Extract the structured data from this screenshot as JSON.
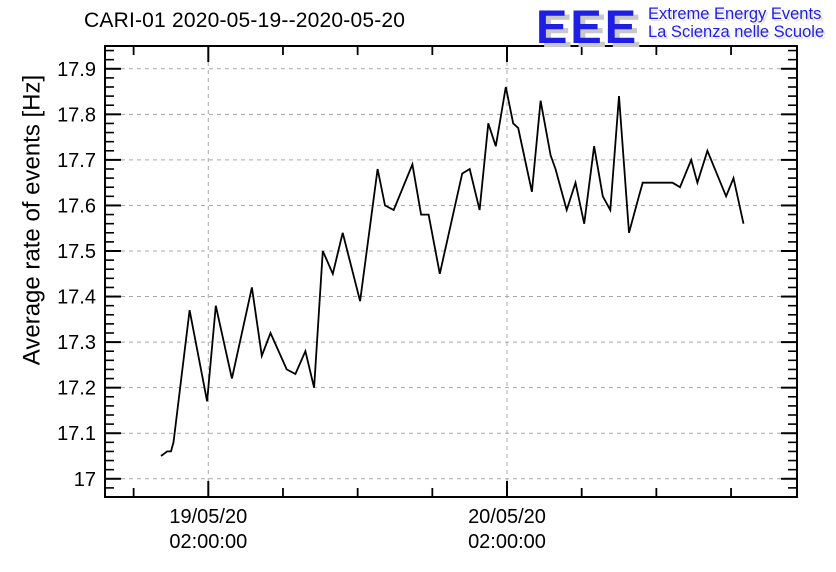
{
  "header": {
    "title": "CARI-01 2020-05-19--2020-05-20"
  },
  "logo": {
    "acronym": "EEE",
    "line1": "Extreme Energy Events",
    "line2": "La Scienza nelle Scuole",
    "color": "#1e1ee4",
    "shadow_color": "#c8c8c8"
  },
  "chart_data": {
    "type": "line",
    "title": "CARI-01 2020-05-19--2020-05-20",
    "xlabel": "",
    "ylabel": "Average rate of events [Hz]",
    "x_unit": "hours since 2020-05-19 00:00:00",
    "xlim": [
      -6.3,
      49.3
    ],
    "ylim": [
      16.96,
      17.95
    ],
    "grid": true,
    "legend": "none",
    "line_color": "#000000",
    "grid_color": "#a9a9a9",
    "y_major_ticks": [
      17.0,
      17.1,
      17.2,
      17.3,
      17.4,
      17.5,
      17.6,
      17.7,
      17.8,
      17.9
    ],
    "y_tick_labels": [
      "17",
      "17.1",
      "17.2",
      "17.3",
      "17.4",
      "17.5",
      "17.6",
      "17.7",
      "17.8",
      "17.9"
    ],
    "y_minor_step": 0.02,
    "x_major_ticks": [
      {
        "t": 2,
        "label_line1": "19/05/20",
        "label_line2": "02:00:00"
      },
      {
        "t": 26,
        "label_line1": "20/05/20",
        "label_line2": "02:00:00"
      }
    ],
    "x_medium_ticks": [
      -4,
      8,
      14,
      20,
      32,
      38,
      44
    ],
    "points": [
      [
        -1.8,
        17.05
      ],
      [
        -1.3,
        17.06
      ],
      [
        -1.0,
        17.06
      ],
      [
        -0.8,
        17.08
      ],
      [
        0.5,
        17.37
      ],
      [
        1.9,
        17.17
      ],
      [
        2.6,
        17.38
      ],
      [
        3.9,
        17.22
      ],
      [
        5.5,
        17.42
      ],
      [
        6.3,
        17.27
      ],
      [
        7.0,
        17.32
      ],
      [
        8.3,
        17.24
      ],
      [
        9.0,
        17.23
      ],
      [
        9.8,
        17.28
      ],
      [
        10.5,
        17.2
      ],
      [
        11.2,
        17.5
      ],
      [
        12.0,
        17.45
      ],
      [
        12.8,
        17.54
      ],
      [
        14.2,
        17.39
      ],
      [
        15.6,
        17.68
      ],
      [
        16.2,
        17.6
      ],
      [
        16.9,
        17.59
      ],
      [
        18.4,
        17.69
      ],
      [
        19.1,
        17.58
      ],
      [
        19.7,
        17.58
      ],
      [
        20.6,
        17.45
      ],
      [
        22.4,
        17.67
      ],
      [
        23.0,
        17.68
      ],
      [
        23.8,
        17.59
      ],
      [
        24.5,
        17.78
      ],
      [
        25.1,
        17.73
      ],
      [
        25.9,
        17.86
      ],
      [
        26.5,
        17.78
      ],
      [
        26.9,
        17.77
      ],
      [
        28.0,
        17.63
      ],
      [
        28.7,
        17.83
      ],
      [
        29.5,
        17.71
      ],
      [
        29.9,
        17.68
      ],
      [
        30.8,
        17.59
      ],
      [
        31.5,
        17.65
      ],
      [
        32.2,
        17.56
      ],
      [
        33.0,
        17.73
      ],
      [
        33.7,
        17.62
      ],
      [
        34.3,
        17.59
      ],
      [
        35.0,
        17.84
      ],
      [
        35.8,
        17.54
      ],
      [
        36.6,
        17.62
      ],
      [
        36.9,
        17.65
      ],
      [
        38.1,
        17.65
      ],
      [
        38.7,
        17.65
      ],
      [
        39.3,
        17.65
      ],
      [
        39.9,
        17.64
      ],
      [
        40.8,
        17.7
      ],
      [
        41.3,
        17.65
      ],
      [
        42.1,
        17.72
      ],
      [
        43.6,
        17.62
      ],
      [
        44.2,
        17.66
      ],
      [
        45.0,
        17.56
      ]
    ]
  }
}
